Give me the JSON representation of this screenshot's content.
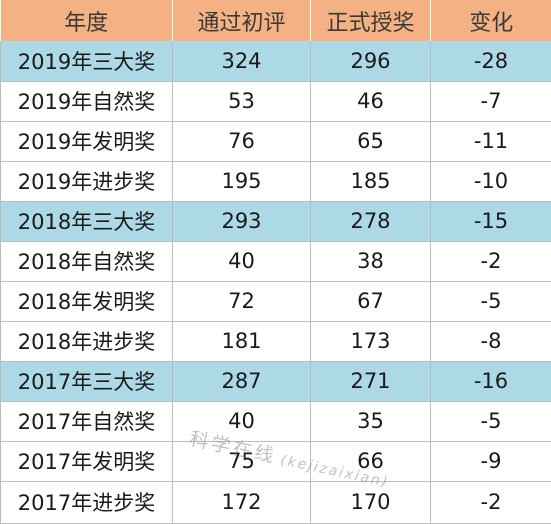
{
  "table": {
    "headers": [
      "年度",
      "通过初评",
      "正式授奖",
      "变化"
    ],
    "rows": [
      {
        "year": "2019年三大奖",
        "preliminary": "324",
        "awarded": "296",
        "change": "-28",
        "group_total": true
      },
      {
        "year": "2019年自然奖",
        "preliminary": "53",
        "awarded": "46",
        "change": "-7",
        "group_total": false
      },
      {
        "year": "2019年发明奖",
        "preliminary": "76",
        "awarded": "65",
        "change": "-11",
        "group_total": false
      },
      {
        "year": "2019年进步奖",
        "preliminary": "195",
        "awarded": "185",
        "change": "-10",
        "group_total": false
      },
      {
        "year": "2018年三大奖",
        "preliminary": "293",
        "awarded": "278",
        "change": "-15",
        "group_total": true
      },
      {
        "year": "2018年自然奖",
        "preliminary": "40",
        "awarded": "38",
        "change": "-2",
        "group_total": false
      },
      {
        "year": "2018年发明奖",
        "preliminary": "72",
        "awarded": "67",
        "change": "-5",
        "group_total": false
      },
      {
        "year": "2018年进步奖",
        "preliminary": "181",
        "awarded": "173",
        "change": "-8",
        "group_total": false
      },
      {
        "year": "2017年三大奖",
        "preliminary": "287",
        "awarded": "271",
        "change": "-16",
        "group_total": true
      },
      {
        "year": "2017年自然奖",
        "preliminary": "40",
        "awarded": "35",
        "change": "-5",
        "group_total": false
      },
      {
        "year": "2017年发明奖",
        "preliminary": "75",
        "awarded": "66",
        "change": "-9",
        "group_total": false
      },
      {
        "year": "2017年进步奖",
        "preliminary": "172",
        "awarded": "170",
        "change": "-2",
        "group_total": false
      }
    ]
  },
  "colors": {
    "header_bg": "#f4b183",
    "group_total_bg": "#add8e6",
    "grid": "#bdbdbd"
  },
  "watermark": {
    "name": "科学在线",
    "handle": "(kejizaixian)"
  }
}
